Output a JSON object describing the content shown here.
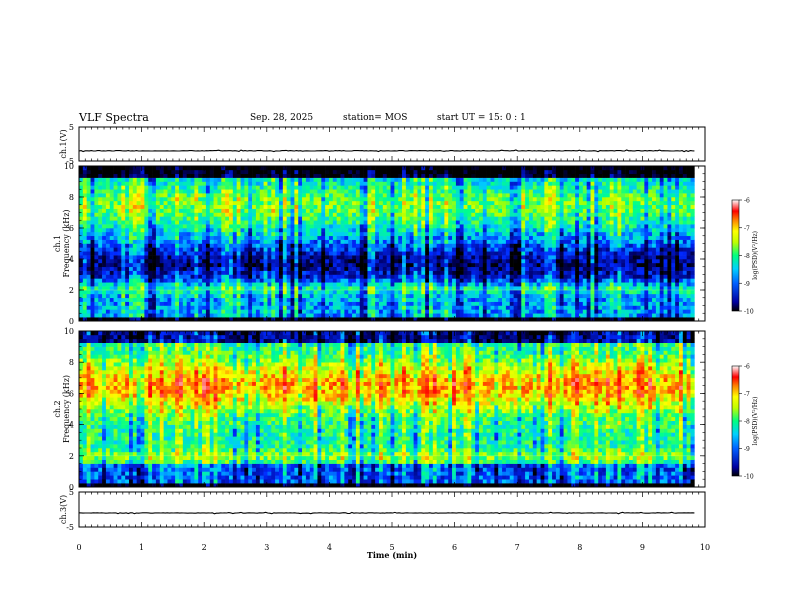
{
  "header": {
    "title": "VLF Spectra",
    "date": "Sep. 28, 2025",
    "station": "station= MOS",
    "start": "start  UT =   15: 0  : 1"
  },
  "chart_data": [
    {
      "type": "line",
      "panel": "ch1-waveform",
      "ylabel": "ch.1(V)",
      "ylim": [
        -5,
        5
      ],
      "yticks": [
        "5",
        "-5"
      ],
      "x_range_min": [
        0,
        9.83
      ],
      "description_value": "near-constant trace at approx -2 V"
    },
    {
      "type": "heatmap",
      "panel": "ch1-spectrogram",
      "ylabel_line1": "ch.1",
      "ylabel_line2": "Frequency (kHz)",
      "ylim": [
        0,
        10
      ],
      "yticks": [
        "0",
        "2",
        "4",
        "6",
        "8",
        "10"
      ],
      "x_range_min": [
        0,
        9.83
      ],
      "colorbar": {
        "label": "log(PSD)(V²/Hz)",
        "range": [
          -10,
          -6
        ],
        "ticks": [
          "-6",
          "-7",
          "-8",
          "-9",
          "-10"
        ]
      }
    },
    {
      "type": "heatmap",
      "panel": "ch2-spectrogram",
      "ylabel_line1": "ch.2",
      "ylabel_line2": "Frequency (kHz)",
      "ylim": [
        0,
        10
      ],
      "yticks": [
        "0",
        "2",
        "4",
        "6",
        "8",
        "10"
      ],
      "x_range_min": [
        0,
        9.83
      ],
      "colorbar": {
        "label": "log(PSD)(V²/Hz)",
        "range": [
          -10,
          -6
        ],
        "ticks": [
          "-6",
          "-7",
          "-8",
          "-9",
          "-10"
        ]
      }
    },
    {
      "type": "line",
      "panel": "ch3-waveform",
      "ylabel": "ch.3(V)",
      "ylim": [
        -5,
        5
      ],
      "yticks": [
        "5",
        "-5"
      ],
      "x_range_min": [
        0,
        9.83
      ],
      "description_value": "near-constant trace at approx -1 V"
    }
  ],
  "xaxis": {
    "label": "Time (min)",
    "ticks": [
      "0",
      "1",
      "2",
      "3",
      "4",
      "5",
      "6",
      "7",
      "8",
      "9",
      "10"
    ],
    "range": [
      0,
      10
    ]
  },
  "colors": {
    "cmap": [
      "#000080",
      "#0000ff",
      "#00c0ff",
      "#00ff80",
      "#c0ff00",
      "#ffff00",
      "#ff8000",
      "#ff0000",
      "#ffffff"
    ]
  }
}
